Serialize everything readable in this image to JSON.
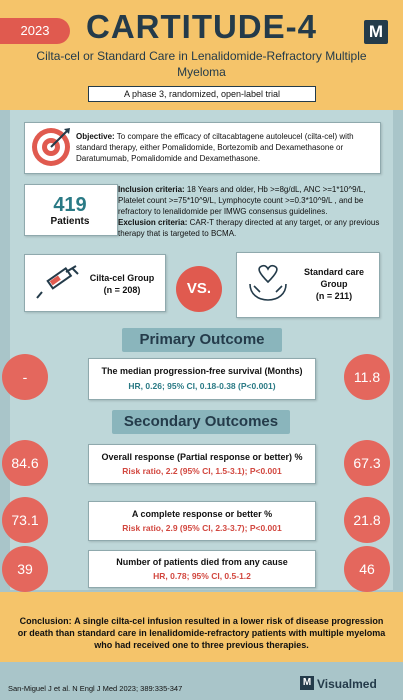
{
  "header": {
    "year": "2023",
    "title": "CARTITUDE-4",
    "subtitle": "Cilta-cel or Standard Care in Lenalidomide-Refractory Multiple Myeloma",
    "trial_type": "A phase 3, randomized, open-label trial",
    "logo_letter": "M"
  },
  "objective": {
    "label": "Objective:",
    "text": "To compare the efficacy of ciltacabtagene autoleucel (cilta-cel) with standard therapy, either Pomalidomide, Bortezomib and Dexamethasone or Daratumumab, Pomalidomide and Dexamethasone.",
    "icon": "target-icon"
  },
  "patients": {
    "count": "419",
    "label": "Patients"
  },
  "criteria": {
    "inclusion_label": "Inclusion criteria:",
    "inclusion_text": "18 Years and older, Hb >=8g/dL, ANC >=1*10^9/L, Platelet count >=75*10^9/L, Lymphocyte count >=0.3*10^9/L , and be refractory to lenalidomide per IMWG consensus guidelines.",
    "exclusion_label": "Exclusion criteria:",
    "exclusion_text": "CAR-T therapy directed at any target, or  any previous therapy that is targeted to BCMA."
  },
  "groups": {
    "group1_name": "Cilta-cel Group",
    "group1_n": "(n = 208)",
    "group1_icon": "syringe-icon",
    "vs": "VS.",
    "group2_name": "Standard care Group",
    "group2_n": "(n =  211)",
    "group2_icon": "hands-heart-icon"
  },
  "primary": {
    "heading": "Primary Outcome",
    "left": "-",
    "right": "11.8",
    "title": "The median progression-free survival (Months)",
    "stat": "HR, 0.26; 95% CI, 0.18-0.38 (P<0.001)"
  },
  "secondary": {
    "heading": "Secondary Outcomes",
    "items": [
      {
        "left": "84.6",
        "right": "67.3",
        "title": "Overall response (Partial response or better) %",
        "stat": "Risk ratio, 2.2 (95% CI, 1.5-3.1); P<0.001"
      },
      {
        "left": "73.1",
        "right": "21.8",
        "title": "A complete response or better %",
        "stat": "Risk ratio, 2.9 (95% CI, 2.3-3.7); P<0.001"
      },
      {
        "left": "39",
        "right": "46",
        "title": "Number of patients died from any cause",
        "stat": "HR, 0.78; 95% CI, 0.5-1.2"
      }
    ]
  },
  "conclusion": {
    "label": "Conclusion:",
    "text": "A single cilta-cel infusion resulted in a lower risk of disease progression or death than standard care in lenalidomide-refractory patients with multiple myeloma who had received one to three previous therapies."
  },
  "footer": {
    "citation": "San-Miguel J et al. N Engl J Med 2023; 389:335-347",
    "brand": "Visualmed",
    "brand_letter": "M"
  },
  "colors": {
    "accent_red": "#e05a4f",
    "header_yellow": "#f5c46a",
    "navy": "#243b4a",
    "teal": "#2a7a85"
  }
}
